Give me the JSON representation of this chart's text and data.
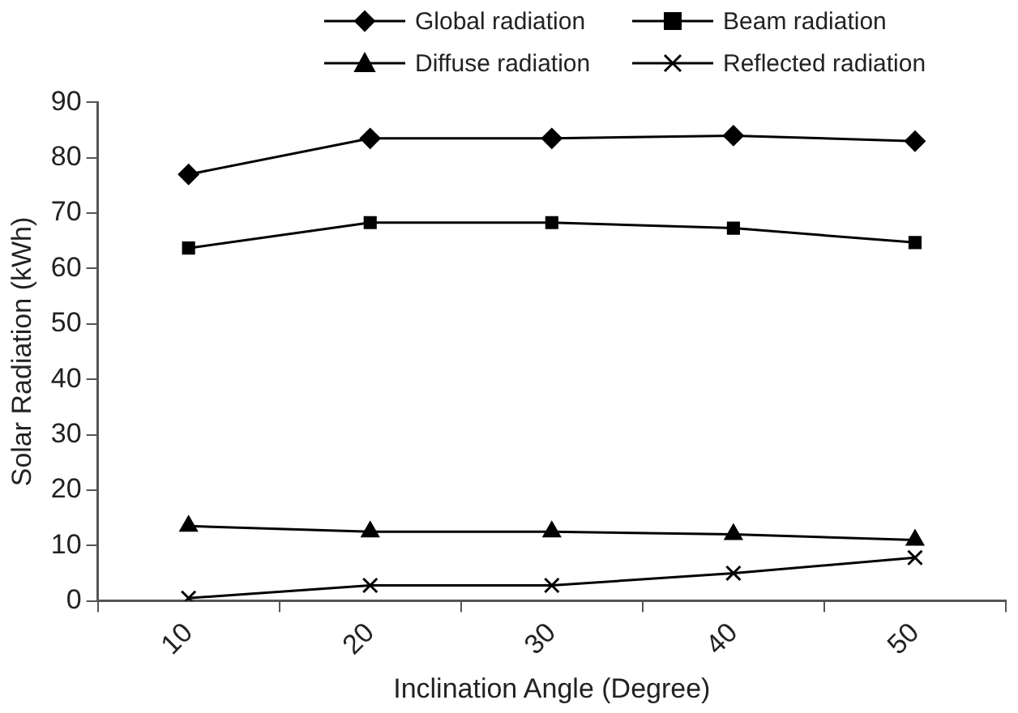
{
  "chart_data": {
    "type": "line",
    "xlabel": "Inclination Angle (Degree)",
    "ylabel": "Solar Radiation (kWh)",
    "categories": [
      "10",
      "20",
      "30",
      "40",
      "50"
    ],
    "series": [
      {
        "name": "Global radiation",
        "color": "#000000",
        "marker": "diamond",
        "values": [
          77,
          83.5,
          83.5,
          84,
          83
        ]
      },
      {
        "name": "Beam radiation",
        "color": "#000000",
        "marker": "square",
        "values": [
          63.7,
          68.3,
          68.3,
          67.3,
          64.7
        ]
      },
      {
        "name": "Diffuse radiation",
        "color": "#000000",
        "marker": "triangle",
        "values": [
          13.5,
          12.5,
          12.5,
          12,
          11
        ]
      },
      {
        "name": "Reflected radiation",
        "color": "#000000",
        "marker": "cross",
        "values": [
          0.5,
          2.8,
          2.8,
          5,
          7.8
        ]
      }
    ],
    "ylim": [
      0,
      90
    ],
    "yticks": [
      0,
      10,
      20,
      30,
      40,
      50,
      60,
      70,
      80,
      90
    ],
    "grid": false,
    "legend": "top",
    "line_style": "solid"
  }
}
